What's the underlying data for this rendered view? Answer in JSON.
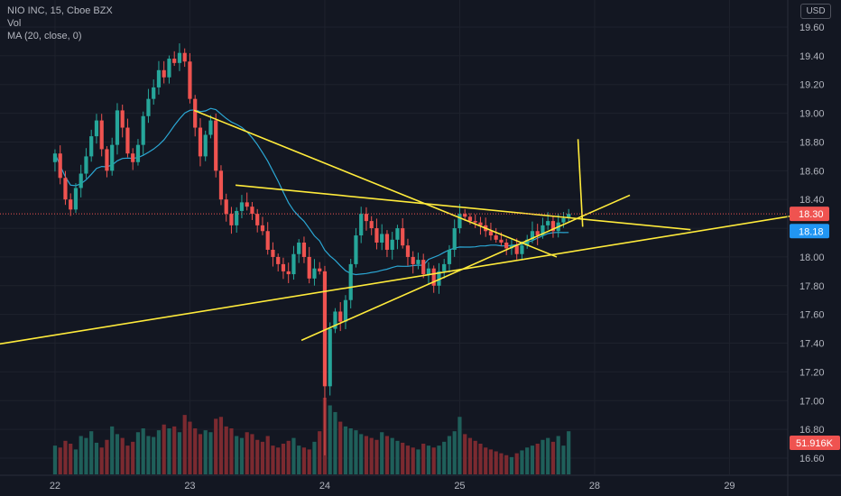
{
  "legend": {
    "symbol_line": "NIO INC, 15, Cboe BZX",
    "volume_label": "Vol",
    "ma_label": "MA (20, close, 0)"
  },
  "currency_button": "USD",
  "colors": {
    "background": "#131722",
    "grid": "#1e222d",
    "up": "#26a69a",
    "down": "#ef5350",
    "up_volume": "#1f5f5a",
    "down_volume": "#7b2a30",
    "ma": "#2ba7d4",
    "trendline": "#ffeb3b",
    "price_tag": "#ef5350",
    "ma_tag": "#2196f3"
  },
  "chart_data": {
    "type": "candlestick",
    "y_axis": {
      "range": [
        16.5,
        19.75
      ],
      "ticks": [
        "19.60",
        "19.40",
        "19.20",
        "19.00",
        "18.80",
        "18.60",
        "18.40",
        "18.20",
        "18.00",
        "17.80",
        "17.60",
        "17.40",
        "17.20",
        "17.00",
        "16.80",
        "16.60"
      ]
    },
    "x_axis": {
      "ticks": [
        {
          "label": "22",
          "bar": 0
        },
        {
          "label": "23",
          "bar": 26
        },
        {
          "label": "24",
          "bar": 52
        },
        {
          "label": "25",
          "bar": 78
        },
        {
          "label": "28",
          "bar": 104
        },
        {
          "label": "29",
          "bar": 130
        }
      ]
    },
    "bar_offset": -10.6,
    "last_price": {
      "label": "18.30",
      "value": 18.3
    },
    "ma_tag": {
      "label": "18.18",
      "value": 18.18
    },
    "volume_tag": {
      "label": "51.916K"
    },
    "series": [
      {
        "name": "NIO INC",
        "close": [
          18.72,
          18.55,
          18.4,
          18.33,
          18.48,
          18.58,
          18.7,
          18.84,
          18.95,
          18.75,
          18.6,
          18.78,
          19.02,
          18.9,
          18.72,
          18.66,
          18.78,
          18.98,
          19.1,
          19.18,
          19.3,
          19.25,
          19.38,
          19.35,
          19.42,
          19.36,
          19.1,
          18.9,
          18.7,
          18.85,
          18.95,
          18.6,
          18.4,
          18.3,
          18.22,
          18.32,
          18.38,
          18.35,
          18.3,
          18.22,
          18.18,
          18.05,
          18.0,
          17.95,
          17.9,
          17.88,
          18.02,
          18.1,
          18.0,
          17.85,
          17.92,
          17.9,
          17.1,
          17.5,
          17.62,
          17.55,
          17.7,
          17.95,
          18.15,
          18.3,
          18.25,
          18.2,
          18.1,
          18.16,
          18.05,
          18.12,
          18.2,
          18.08,
          18.0,
          17.95,
          17.98,
          17.88,
          17.92,
          17.8,
          17.9,
          17.95,
          18.05,
          18.2,
          18.3,
          18.28,
          18.25,
          18.24,
          18.22,
          18.18,
          18.15,
          18.12,
          18.1,
          18.06,
          18.08,
          18.02,
          18.08,
          18.12,
          18.18,
          18.15,
          18.22,
          18.25,
          18.18,
          18.24,
          18.27,
          18.3
        ]
      },
      {
        "name": "Vol",
        "volume": [
          30,
          28,
          35,
          32,
          26,
          40,
          38,
          45,
          33,
          28,
          36,
          50,
          42,
          38,
          30,
          34,
          44,
          48,
          40,
          39,
          46,
          52,
          48,
          50,
          44,
          62,
          55,
          48,
          42,
          46,
          44,
          58,
          60,
          50,
          48,
          40,
          38,
          44,
          42,
          36,
          34,
          40,
          30,
          28,
          32,
          35,
          38,
          30,
          28,
          26,
          34,
          45,
          80,
          72,
          65,
          55,
          50,
          48,
          46,
          42,
          40,
          38,
          36,
          44,
          40,
          38,
          35,
          33,
          30,
          28,
          26,
          32,
          30,
          28,
          30,
          34,
          40,
          45,
          60,
          42,
          38,
          35,
          32,
          28,
          26,
          24,
          22,
          20,
          18,
          22,
          25,
          28,
          30,
          32,
          36,
          38,
          34,
          40,
          30,
          45
        ]
      }
    ],
    "drawings": [
      {
        "from": [
          -20,
          17.34
        ],
        "to": [
          148,
          18.32
        ]
      },
      {
        "from": [
          26.8,
          19.02
        ],
        "to": [
          96.7,
          18.0
        ]
      },
      {
        "from": [
          34.8,
          18.5
        ],
        "to": [
          122.5,
          18.19
        ]
      },
      {
        "from": [
          47.5,
          17.42
        ],
        "to": [
          110.8,
          18.43
        ]
      },
      {
        "from": [
          100.8,
          18.82
        ],
        "to": [
          101.7,
          18.21
        ]
      }
    ]
  }
}
